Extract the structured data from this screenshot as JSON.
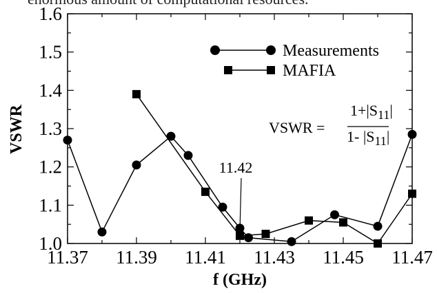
{
  "header_snippet": "enormous amount of computational resources.",
  "chart_data": {
    "type": "line",
    "title": "",
    "xlabel": "f (GHz)",
    "ylabel": "VSWR",
    "xlim": [
      11.37,
      11.47
    ],
    "ylim": [
      1.0,
      1.6
    ],
    "xticks": [
      11.37,
      11.39,
      11.41,
      11.43,
      11.45,
      11.47
    ],
    "yticks": [
      1.0,
      1.1,
      1.2,
      1.3,
      1.4,
      1.5,
      1.6
    ],
    "xtick_labels": [
      "11.37",
      "11.39",
      "11.41",
      "11.43",
      "11.45",
      "11.47"
    ],
    "ytick_labels": [
      "1.0",
      "1.1",
      "1.2",
      "1.3",
      "1.4",
      "1.5",
      "1.6"
    ],
    "grid": false,
    "legend_position": "top-right",
    "series": [
      {
        "name": "Measurements",
        "marker": "circle",
        "color": "#000000",
        "x": [
          11.37,
          11.38,
          11.39,
          11.4,
          11.405,
          11.415,
          11.42,
          11.4225,
          11.435,
          11.4475,
          11.46,
          11.47
        ],
        "y": [
          1.27,
          1.03,
          1.205,
          1.28,
          1.23,
          1.095,
          1.04,
          1.015,
          1.005,
          1.075,
          1.045,
          1.285
        ]
      },
      {
        "name": "MAFIA",
        "marker": "square",
        "color": "#000000",
        "x": [
          11.39,
          11.41,
          11.42,
          11.4275,
          11.44,
          11.45,
          11.46,
          11.47
        ],
        "y": [
          1.39,
          1.135,
          1.02,
          1.025,
          1.06,
          1.055,
          1.0,
          1.13
        ]
      }
    ],
    "annotations": {
      "arrow_label": "11.42",
      "arrow_target_x": 11.42,
      "arrow_target_y": 1.02,
      "formula_lhs": "VSWR =",
      "formula_num_a": "1+|S",
      "formula_num_sub": "11",
      "formula_num_b": "|",
      "formula_den_a": "1- |S",
      "formula_den_sub": "11",
      "formula_den_b": "|"
    }
  }
}
